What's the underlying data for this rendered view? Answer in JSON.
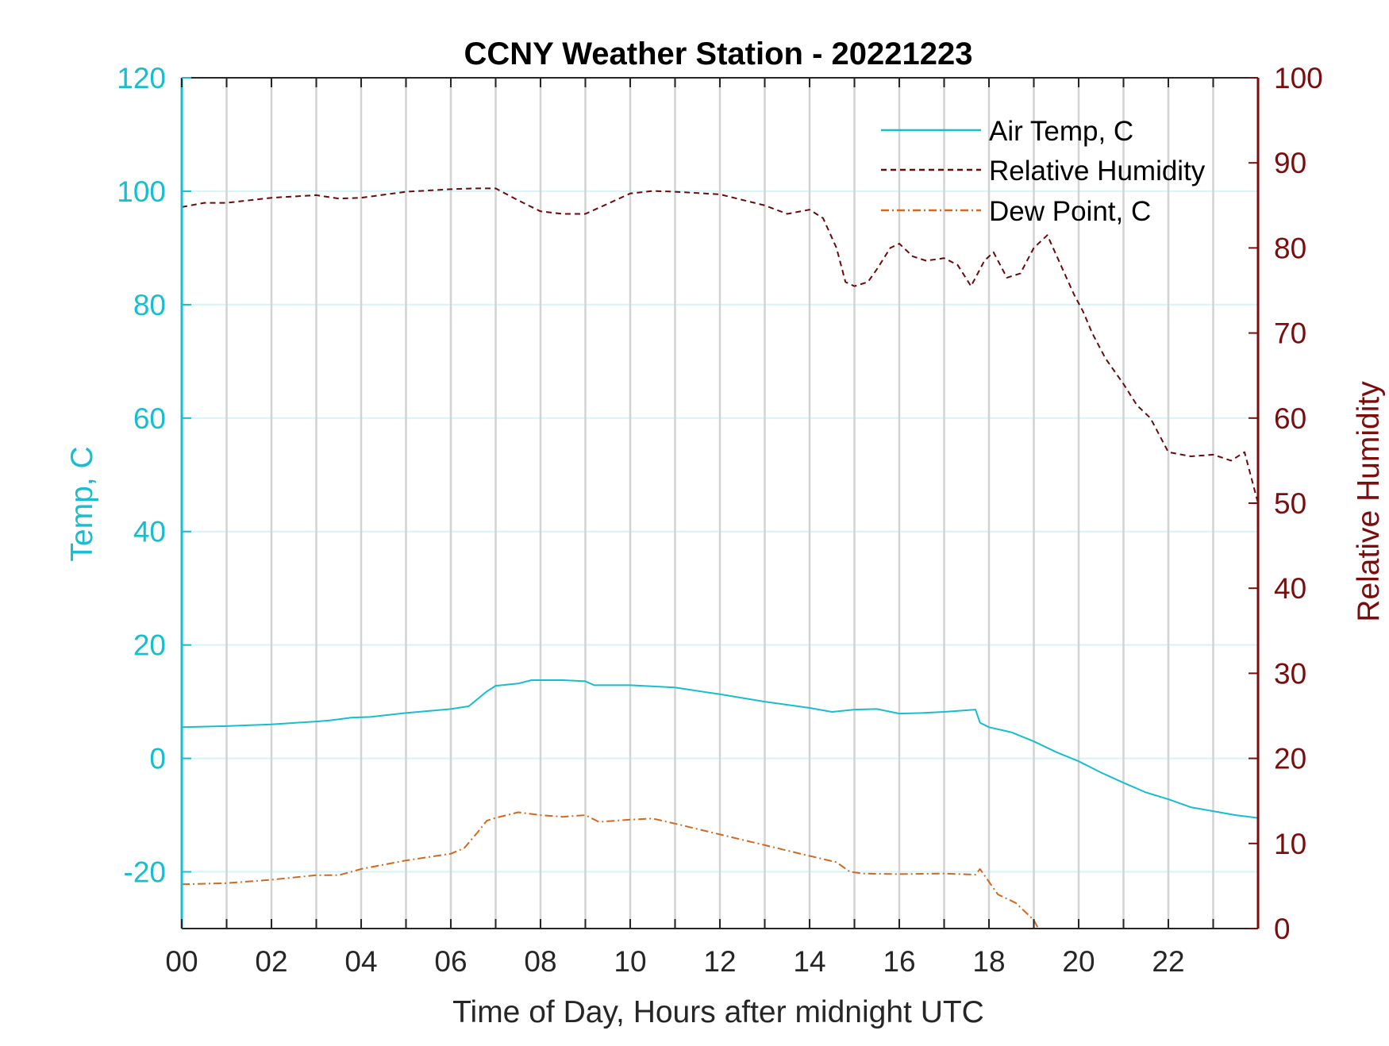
{
  "chart_data": {
    "type": "line",
    "title": "CCNY Weather Station - 20221223",
    "xlabel": "Time of Day, Hours after midnight UTC",
    "ylabel_left": "Temp, C",
    "ylabel_right": "Relative Humidity",
    "xlim": [
      0,
      24
    ],
    "ylim_left": [
      -30,
      120
    ],
    "ylim_right": [
      0,
      100
    ],
    "x_ticks": [
      0,
      2,
      4,
      6,
      8,
      10,
      12,
      14,
      16,
      18,
      20,
      22
    ],
    "x_tick_labels": [
      "00",
      "02",
      "04",
      "06",
      "08",
      "10",
      "12",
      "14",
      "16",
      "18",
      "20",
      "22"
    ],
    "y_ticks_left": [
      -20,
      0,
      20,
      40,
      60,
      80,
      100,
      120
    ],
    "y_ticks_right": [
      0,
      10,
      20,
      30,
      40,
      50,
      60,
      70,
      80,
      90,
      100
    ],
    "grid": {
      "vertical_hourly": true,
      "horizontal": true
    },
    "legend_placement": "top-right",
    "colors": {
      "left_axis": "#17BECF",
      "right_axis": "#7A0E0E",
      "air_temp": "#17BECF",
      "relative_humidity": "#6B0A0A",
      "dew_point": "#D2691E",
      "vertical_grid": "#D3D3D3",
      "horizontal_grid": "#D8F3F8"
    },
    "series": [
      {
        "name": "Air Temp, C",
        "axis": "left",
        "style": "solid",
        "x": [
          0,
          1,
          2,
          3,
          3.3,
          3.8,
          4.2,
          5,
          6,
          6.4,
          6.6,
          6.8,
          7,
          7.5,
          7.8,
          8.5,
          9,
          9.2,
          10,
          11,
          12,
          13,
          14,
          14.5,
          15,
          15.5,
          16,
          16.5,
          17,
          17.7,
          17.8,
          18,
          18.5,
          19,
          19.5,
          20,
          20.5,
          21,
          21.5,
          22,
          22.5,
          23,
          23.5,
          24
        ],
        "y": [
          5.5,
          5.7,
          6,
          6.5,
          6.7,
          7.2,
          7.3,
          8,
          8.7,
          9.2,
          10.5,
          11.8,
          12.8,
          13.2,
          13.8,
          13.8,
          13.6,
          12.9,
          12.9,
          12.5,
          11.3,
          10,
          8.9,
          8.2,
          8.6,
          8.7,
          7.9,
          8,
          8.2,
          8.6,
          6.3,
          5.5,
          4.6,
          3,
          1.1,
          -0.5,
          -2.5,
          -4.3,
          -6,
          -7.2,
          -8.6,
          -9.3,
          -10,
          -10.5
        ]
      },
      {
        "name": "Relative Humidity",
        "axis": "right",
        "style": "dashed",
        "x": [
          0,
          0.5,
          1,
          2,
          3,
          3.5,
          4,
          5,
          6,
          6.5,
          7,
          7.5,
          8,
          8.5,
          9,
          9.5,
          10,
          10.5,
          11,
          12,
          13,
          13.5,
          14,
          14.3,
          14.6,
          14.8,
          15,
          15.3,
          15.5,
          15.8,
          16,
          16.3,
          16.6,
          17,
          17.3,
          17.6,
          17.9,
          18.1,
          18.4,
          18.7,
          19,
          19.3,
          19.6,
          19.9,
          20.1,
          20.3,
          20.6,
          21,
          21.3,
          21.6,
          21.8,
          22,
          22.5,
          23,
          23.4,
          23.7,
          23.85,
          24
        ],
        "y": [
          84.8,
          85.3,
          85.3,
          85.9,
          86.2,
          85.8,
          85.9,
          86.6,
          86.9,
          87,
          87,
          85.6,
          84.3,
          84,
          84,
          85.2,
          86.4,
          86.7,
          86.6,
          86.3,
          85,
          84,
          84.5,
          83.5,
          80,
          76,
          75.5,
          76,
          77.5,
          80,
          80.5,
          79,
          78.5,
          78.8,
          78,
          75.5,
          78.5,
          79.5,
          76.5,
          77,
          80,
          81.5,
          78,
          74.5,
          72.5,
          70,
          67,
          64,
          61.5,
          60,
          58,
          56,
          55.5,
          55.7,
          55,
          56,
          53,
          50
        ]
      },
      {
        "name": "Dew Point, C",
        "axis": "left",
        "style": "dashdot",
        "x": [
          0,
          1,
          2,
          3,
          3.5,
          4,
          5,
          6,
          6.3,
          6.6,
          6.8,
          7,
          7.5,
          8,
          8.5,
          9,
          9.3,
          10,
          10.5,
          11,
          12,
          13,
          14,
          14.6,
          14.9,
          15.2,
          16,
          17,
          17.7,
          17.8,
          18.2,
          18.6,
          18.8,
          19,
          19.1
        ],
        "y": [
          -22.2,
          -22,
          -21.4,
          -20.6,
          -20.6,
          -19.5,
          -18,
          -16.8,
          -15.8,
          -13,
          -11,
          -10.5,
          -9.5,
          -10,
          -10.3,
          -10,
          -11.2,
          -10.8,
          -10.6,
          -11.5,
          -13.4,
          -15.3,
          -17.2,
          -18.3,
          -20,
          -20.3,
          -20.4,
          -20.3,
          -20.5,
          -19.5,
          -24,
          -25.5,
          -27,
          -28.5,
          -30
        ]
      }
    ]
  }
}
